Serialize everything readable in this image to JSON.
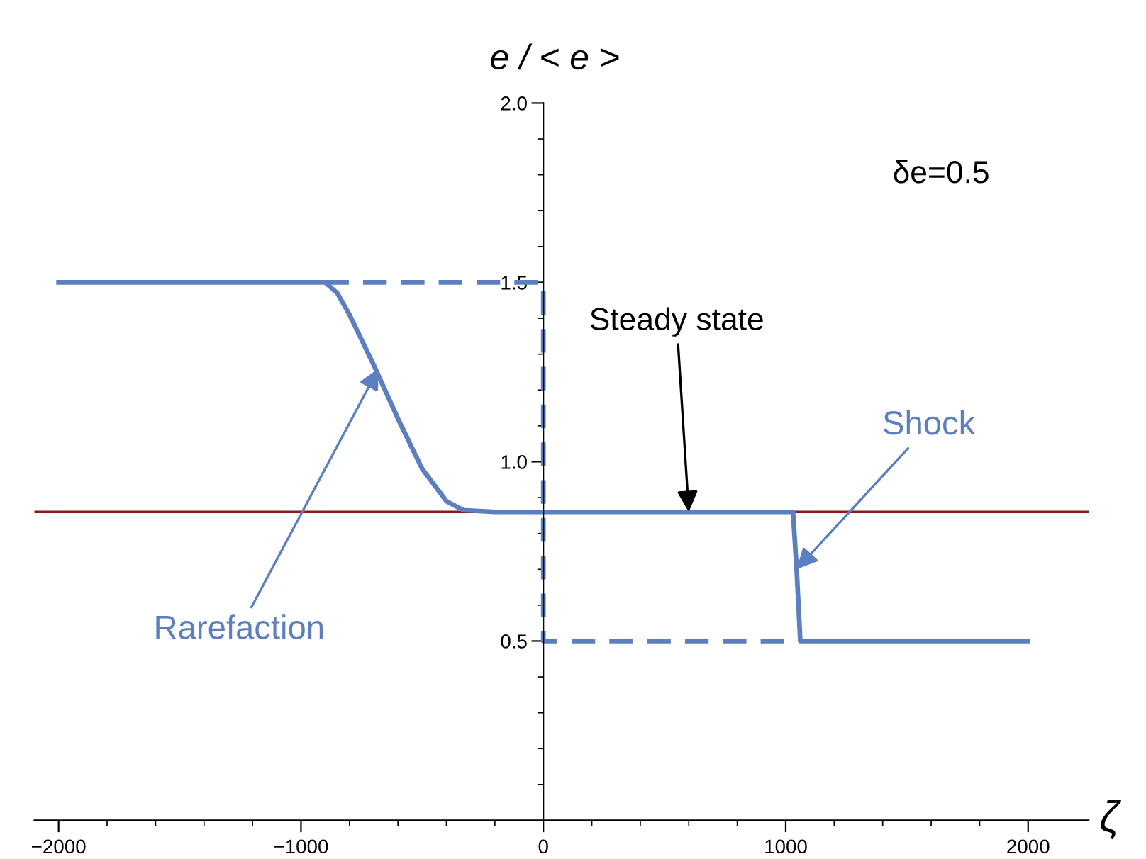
{
  "chart_data": {
    "type": "line",
    "xlabel": "ζ",
    "ylabel": "e / < e >",
    "xlim": [
      -2100,
      2250
    ],
    "ylim": [
      0,
      2.0
    ],
    "xticks": [
      {
        "value": -2000,
        "label": "−2000"
      },
      {
        "value": -1000,
        "label": "−1000"
      },
      0,
      1000,
      2000
    ],
    "yticks": [
      {
        "value": 0.5,
        "label": "0.5"
      },
      {
        "value": 1.0,
        "label": "1.0"
      },
      {
        "value": 1.5,
        "label": "1.5"
      },
      {
        "value": 2.0,
        "label": "2.0"
      }
    ],
    "series": [
      {
        "color": "#5b7fbf",
        "line_style": "solid",
        "x": [
          -2000,
          -900,
          -850,
          -800,
          -700,
          -600,
          -500,
          -400,
          -330,
          -200,
          1030,
          1045,
          1060,
          2000
        ],
        "values": [
          1.5,
          1.5,
          1.47,
          1.41,
          1.27,
          1.12,
          0.98,
          0.89,
          0.865,
          0.86,
          0.86,
          0.7,
          0.5,
          0.5
        ]
      },
      {
        "color": "#5b7fbf",
        "line_style": "dashed",
        "x": [
          -900,
          0,
          0,
          1050
        ],
        "values": [
          1.5,
          1.5,
          0.5,
          0.5
        ]
      }
    ],
    "ref_lines": [
      {
        "axis": "y",
        "value": 0.86,
        "label": null,
        "color": "#8b1a1a"
      }
    ],
    "annotations": [
      {
        "text": "Rarefaction",
        "x": -680,
        "y": 1.26
      },
      {
        "text": "Steady state",
        "x": 600,
        "y": 0.86
      },
      {
        "text": "Shock",
        "x": 1045,
        "y": 0.7
      },
      "δe=0.5"
    ],
    "grid": false,
    "legend": false
  }
}
